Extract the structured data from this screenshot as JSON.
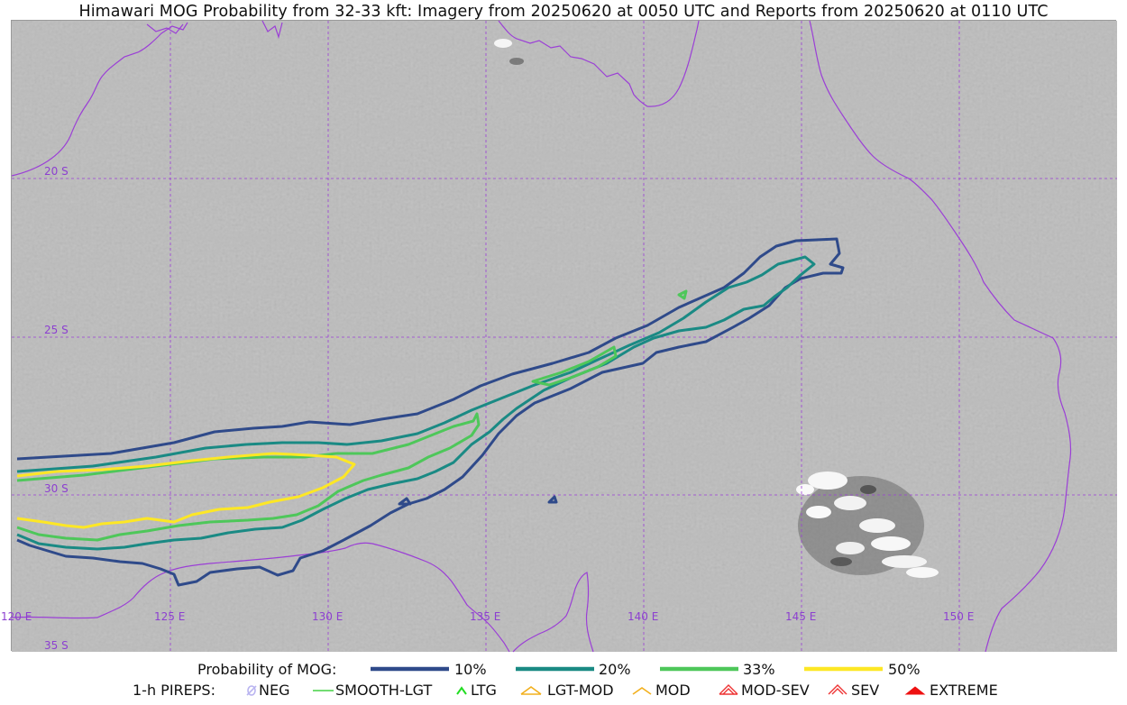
{
  "title": "Himawari MOG Probability from 32-33 kft: Imagery from 20250620 at 0050 UTC and Reports from 20250620 at 0110 UTC",
  "colors": {
    "p10": "#2f4a8a",
    "p20": "#1a8a84",
    "p33": "#4ec75a",
    "p50": "#fde725",
    "grid": "#9b3fd6",
    "coast": "#9b3fd6"
  },
  "map": {
    "lat_labels": [
      "20 S",
      "25 S",
      "30 S",
      "35 S"
    ],
    "lon_labels": [
      "120 E",
      "125 E",
      "130 E",
      "135 E",
      "140 E",
      "145 E",
      "150 E"
    ]
  },
  "legend": {
    "prob_title": "Probability of MOG:",
    "prob_items": [
      {
        "label": "10%",
        "color": "#2f4a8a"
      },
      {
        "label": "20%",
        "color": "#1a8a84"
      },
      {
        "label": "33%",
        "color": "#4ec75a"
      },
      {
        "label": "50%",
        "color": "#fde725"
      }
    ],
    "pirep_title": "1-h PIREPS:",
    "pirep_items": [
      {
        "label": "NEG",
        "icon": "neg-icon",
        "color": "#b9b4f0"
      },
      {
        "label": "SMOOTH-LGT",
        "icon": "smooth-lgt-icon",
        "color": "#44d044"
      },
      {
        "label": "LTG",
        "icon": "ltg-icon",
        "color": "#22dd22"
      },
      {
        "label": "LGT-MOD",
        "icon": "lgt-mod-icon",
        "color": "#f2b01e"
      },
      {
        "label": "MOD",
        "icon": "mod-icon",
        "color": "#f2b01e"
      },
      {
        "label": "MOD-SEV",
        "icon": "mod-sev-icon",
        "color": "#e33"
      },
      {
        "label": "SEV",
        "icon": "sev-icon",
        "color": "#e33"
      },
      {
        "label": "EXTREME",
        "icon": "extreme-icon",
        "color": "#e11"
      }
    ]
  }
}
